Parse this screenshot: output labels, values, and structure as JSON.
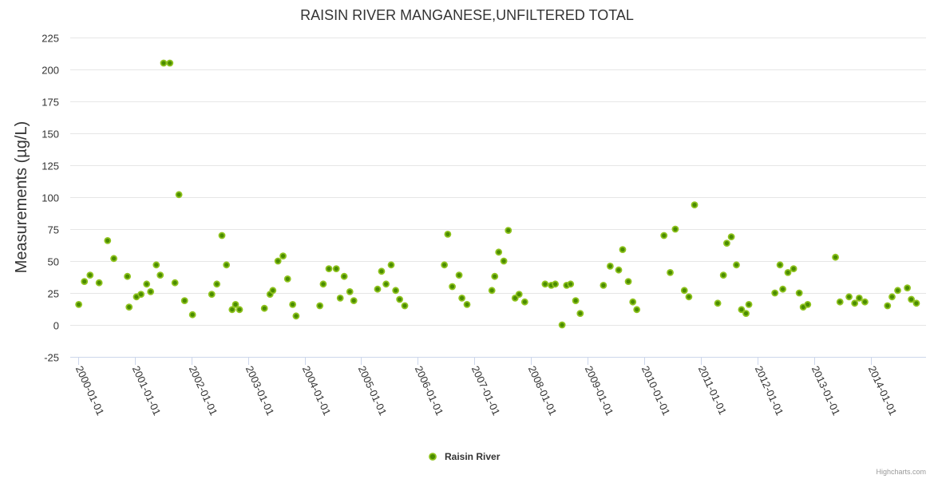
{
  "chart_data": {
    "type": "scatter",
    "title": "RAISIN RIVER MANGANESE,UNFILTERED TOTAL",
    "xlabel": "",
    "ylabel": "Measurements (µg/L)",
    "ylim": [
      -25,
      225
    ],
    "yticks": [
      -25,
      0,
      25,
      50,
      75,
      100,
      125,
      150,
      175,
      200,
      225
    ],
    "xlim": [
      1999.86,
      2014.98
    ],
    "xtick_labels": [
      "2000-01-01",
      "2001-01-01",
      "2002-01-01",
      "2003-01-01",
      "2004-01-01",
      "2005-01-01",
      "2006-01-01",
      "2007-01-01",
      "2008-01-01",
      "2009-01-01",
      "2010-01-01",
      "2011-01-01",
      "2012-01-01",
      "2013-01-01",
      "2014-01-01"
    ],
    "x_units": "decimal year",
    "grid": true,
    "legend_placement": "bottom-center",
    "series": [
      {
        "name": "Raisin River",
        "color": "#4a8c00",
        "edge_color": "#8fc31f",
        "points": [
          [
            2000.01,
            16
          ],
          [
            2000.11,
            34
          ],
          [
            2000.21,
            39
          ],
          [
            2000.37,
            33
          ],
          [
            2000.52,
            66
          ],
          [
            2000.63,
            52
          ],
          [
            2000.87,
            38
          ],
          [
            2000.9,
            14
          ],
          [
            2001.03,
            22
          ],
          [
            2001.11,
            24
          ],
          [
            2001.21,
            32
          ],
          [
            2001.28,
            26
          ],
          [
            2001.38,
            47
          ],
          [
            2001.45,
            39
          ],
          [
            2001.51,
            205
          ],
          [
            2001.62,
            205
          ],
          [
            2001.71,
            33
          ],
          [
            2001.78,
            102
          ],
          [
            2001.88,
            19
          ],
          [
            2002.02,
            8
          ],
          [
            2002.36,
            24
          ],
          [
            2002.45,
            32
          ],
          [
            2002.54,
            70
          ],
          [
            2002.62,
            47
          ],
          [
            2002.72,
            12
          ],
          [
            2002.78,
            16
          ],
          [
            2002.85,
            12
          ],
          [
            2003.29,
            13
          ],
          [
            2003.39,
            24
          ],
          [
            2003.44,
            27
          ],
          [
            2003.53,
            50
          ],
          [
            2003.62,
            54
          ],
          [
            2003.7,
            36
          ],
          [
            2003.79,
            16
          ],
          [
            2003.85,
            7
          ],
          [
            2004.27,
            15
          ],
          [
            2004.33,
            32
          ],
          [
            2004.43,
            44
          ],
          [
            2004.56,
            44
          ],
          [
            2004.63,
            21
          ],
          [
            2004.7,
            38
          ],
          [
            2004.8,
            26
          ],
          [
            2004.87,
            19
          ],
          [
            2005.29,
            28
          ],
          [
            2005.36,
            42
          ],
          [
            2005.44,
            32
          ],
          [
            2005.53,
            47
          ],
          [
            2005.61,
            27
          ],
          [
            2005.68,
            20
          ],
          [
            2005.77,
            15
          ],
          [
            2006.47,
            47
          ],
          [
            2006.53,
            71
          ],
          [
            2006.61,
            30
          ],
          [
            2006.73,
            39
          ],
          [
            2006.78,
            21
          ],
          [
            2006.87,
            16
          ],
          [
            2007.31,
            27
          ],
          [
            2007.36,
            38
          ],
          [
            2007.43,
            57
          ],
          [
            2007.52,
            50
          ],
          [
            2007.6,
            74
          ],
          [
            2007.72,
            21
          ],
          [
            2007.79,
            24
          ],
          [
            2007.89,
            18
          ],
          [
            2008.25,
            32
          ],
          [
            2008.36,
            31
          ],
          [
            2008.43,
            32
          ],
          [
            2008.55,
            0
          ],
          [
            2008.63,
            31
          ],
          [
            2008.7,
            32
          ],
          [
            2008.79,
            19
          ],
          [
            2008.87,
            9
          ],
          [
            2009.28,
            31
          ],
          [
            2009.4,
            46
          ],
          [
            2009.55,
            43
          ],
          [
            2009.62,
            59
          ],
          [
            2009.72,
            34
          ],
          [
            2009.8,
            18
          ],
          [
            2009.87,
            12
          ],
          [
            2010.35,
            70
          ],
          [
            2010.46,
            41
          ],
          [
            2010.55,
            75
          ],
          [
            2010.71,
            27
          ],
          [
            2010.79,
            22
          ],
          [
            2010.89,
            94
          ],
          [
            2011.3,
            17
          ],
          [
            2011.4,
            39
          ],
          [
            2011.46,
            64
          ],
          [
            2011.54,
            69
          ],
          [
            2011.63,
            47
          ],
          [
            2011.72,
            12
          ],
          [
            2011.8,
            9
          ],
          [
            2011.85,
            16
          ],
          [
            2012.31,
            25
          ],
          [
            2012.4,
            47
          ],
          [
            2012.45,
            28
          ],
          [
            2012.54,
            41
          ],
          [
            2012.64,
            44
          ],
          [
            2012.74,
            25
          ],
          [
            2012.81,
            14
          ],
          [
            2012.89,
            16
          ],
          [
            2013.38,
            53
          ],
          [
            2013.46,
            18
          ],
          [
            2013.62,
            22
          ],
          [
            2013.72,
            17
          ],
          [
            2013.8,
            21
          ],
          [
            2013.9,
            18
          ],
          [
            2014.3,
            15
          ],
          [
            2014.38,
            22
          ],
          [
            2014.48,
            27
          ],
          [
            2014.65,
            29
          ],
          [
            2014.72,
            20
          ],
          [
            2014.81,
            17
          ]
        ]
      }
    ]
  },
  "credits": "Highcharts.com"
}
